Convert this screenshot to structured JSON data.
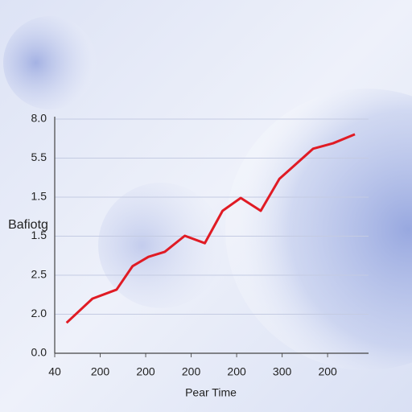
{
  "chart_data": {
    "type": "line",
    "x_label": "Pear Time",
    "y_label": "Bafiotg",
    "xlim": [
      0,
      6.9
    ],
    "xticks": [
      {
        "value": 0,
        "label": "40"
      },
      {
        "value": 1,
        "label": "200"
      },
      {
        "value": 2,
        "label": "200"
      },
      {
        "value": 3,
        "label": "200"
      },
      {
        "value": 4,
        "label": "200"
      },
      {
        "value": 5,
        "label": "300"
      },
      {
        "value": 6,
        "label": "200"
      }
    ],
    "ylim": [
      0,
      6
    ],
    "yticks": [
      {
        "value": 0,
        "label": "0.0"
      },
      {
        "value": 1,
        "label": "2.0"
      },
      {
        "value": 2,
        "label": "2.5"
      },
      {
        "value": 3,
        "label": "1.5"
      },
      {
        "value": 4,
        "label": "1.5"
      },
      {
        "value": 5,
        "label": "5.5"
      },
      {
        "value": 6,
        "label": "8.0"
      }
    ],
    "grid": true,
    "series": [
      {
        "color": "#e01b24",
        "x": [
          0.26,
          0.83,
          1.36,
          1.71,
          2.06,
          2.42,
          2.86,
          3.3,
          3.69,
          4.09,
          4.53,
          4.94,
          5.24,
          5.68,
          6.12,
          6.6
        ],
        "values": [
          0.78,
          1.4,
          1.63,
          2.23,
          2.47,
          2.6,
          3.01,
          2.82,
          3.65,
          3.98,
          3.65,
          4.47,
          4.78,
          5.24,
          5.38,
          5.61
        ]
      }
    ]
  }
}
